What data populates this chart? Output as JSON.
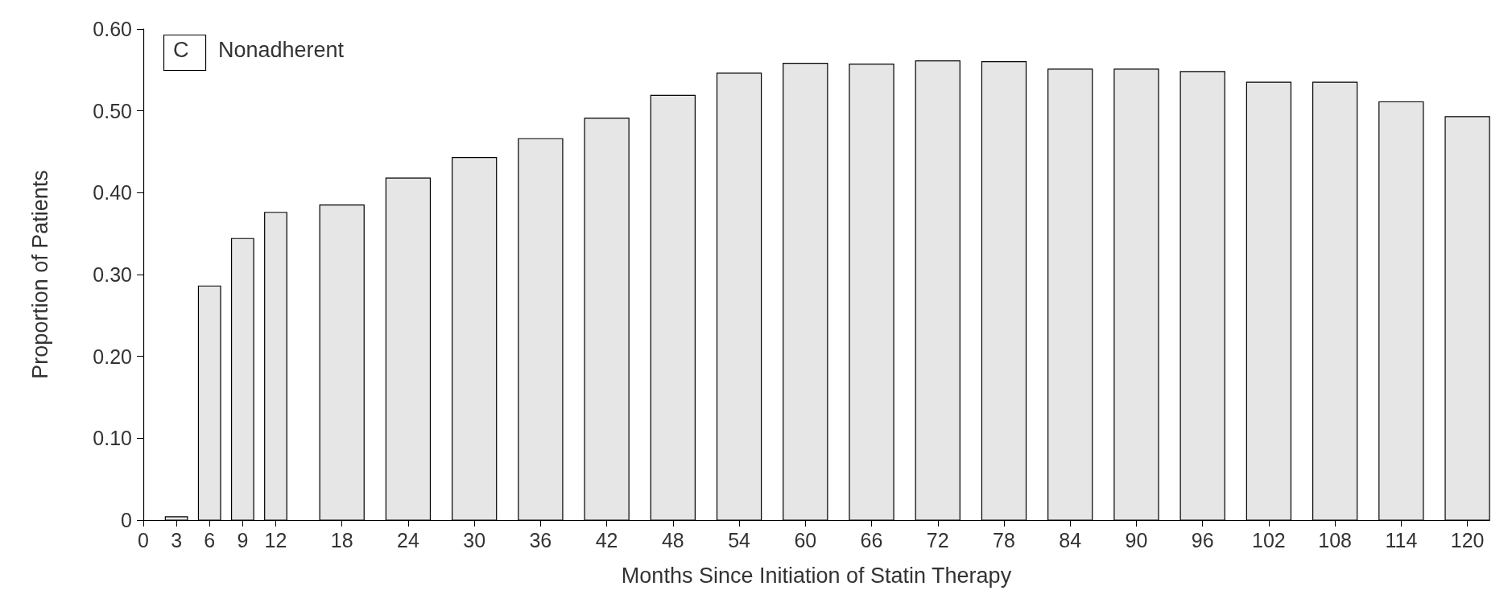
{
  "chart_data": {
    "type": "bar",
    "title": "C",
    "subtitle": "Nonadherent",
    "xlabel": "Months Since Initiation of Statin Therapy",
    "ylabel": "Proportion of Patients",
    "x": [
      3,
      6,
      9,
      12,
      18,
      24,
      30,
      36,
      42,
      48,
      54,
      60,
      66,
      72,
      78,
      84,
      90,
      96,
      102,
      108,
      114,
      120
    ],
    "values": [
      0.004,
      0.286,
      0.344,
      0.376,
      0.385,
      0.418,
      0.443,
      0.466,
      0.491,
      0.519,
      0.546,
      0.558,
      0.557,
      0.561,
      0.56,
      0.551,
      0.551,
      0.548,
      0.535,
      0.535,
      0.511,
      0.493
    ],
    "color": "#e6e6e6",
    "xlim": [
      0,
      122
    ],
    "xticks": [
      0,
      3,
      6,
      9,
      12,
      18,
      24,
      30,
      36,
      42,
      48,
      54,
      60,
      66,
      72,
      78,
      84,
      90,
      96,
      102,
      108,
      114,
      120
    ],
    "ylim": [
      0,
      0.6
    ],
    "yticks": [
      0,
      {
        "value": 0.1,
        "label": "0.10"
      },
      {
        "value": 0.2,
        "label": "0.20"
      },
      {
        "value": 0.3,
        "label": "0.30"
      },
      {
        "value": 0.4,
        "label": "0.40"
      },
      {
        "value": 0.5,
        "label": "0.50"
      },
      {
        "value": 0.6,
        "label": "0.60"
      }
    ],
    "grid": false
  }
}
